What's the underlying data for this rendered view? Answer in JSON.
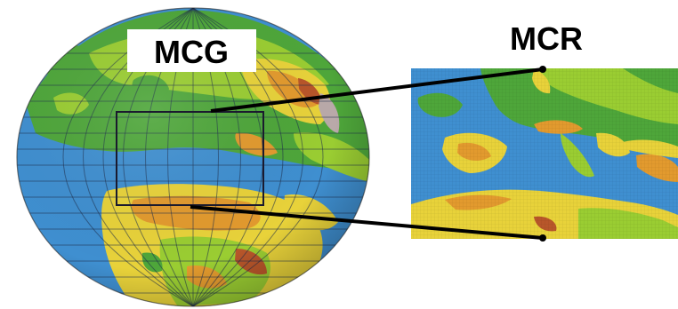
{
  "labels": {
    "global": "MCG",
    "regional": "MCR"
  },
  "colors": {
    "ocean": "#3f8fd0",
    "ocean_dark": "#2f78b8",
    "lowland": "#4ea63a",
    "plain": "#9acd32",
    "highland": "#e8d23a",
    "mountain": "#e29a2e",
    "peak": "#b8562a",
    "ice": "#b9a9a9",
    "grid": "#1d2d4a",
    "connector": "#000000"
  }
}
